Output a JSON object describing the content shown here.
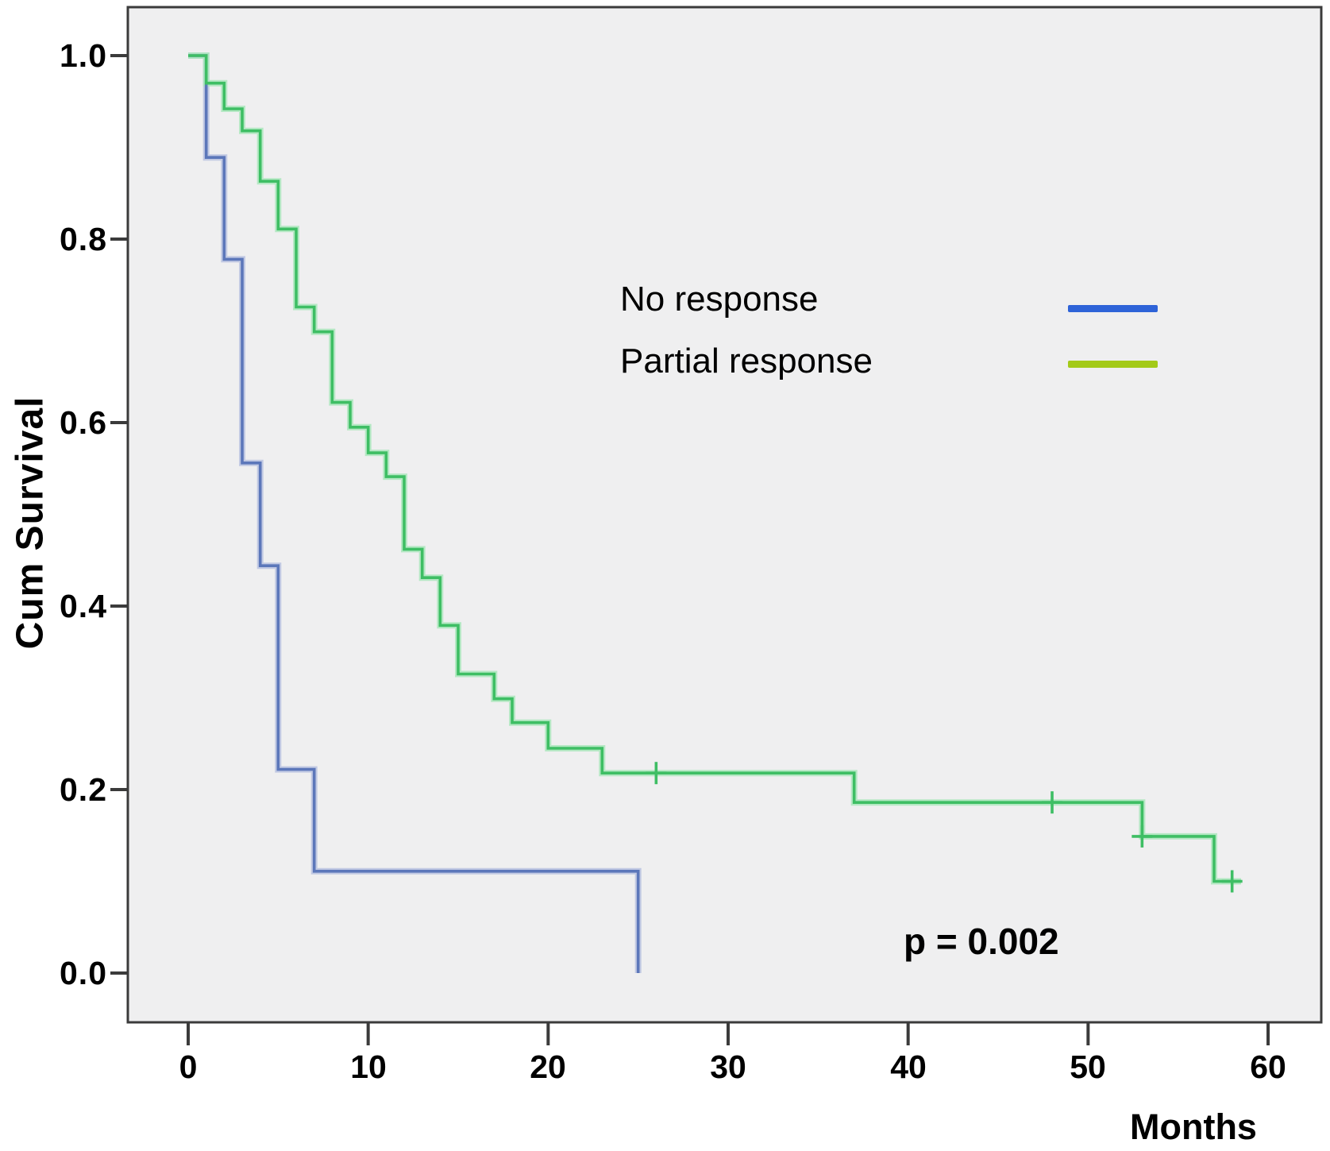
{
  "figure": {
    "ylabel": "Cum Survival",
    "xlabel": "Months",
    "pvalue_label": "p = 0.002"
  },
  "legend": {
    "items": [
      {
        "label": "No response",
        "color": "#2e63d8"
      },
      {
        "label": "Partial response",
        "color": "#a3ca18"
      }
    ]
  },
  "chart_data": {
    "type": "line",
    "subtype": "kaplan_meier_step_curve",
    "title": "",
    "xlabel": "Months",
    "ylabel": "Cum Survival",
    "xlim": [
      0,
      60
    ],
    "ylim": [
      0.0,
      1.0
    ],
    "x_ticks": [
      "0",
      "10",
      "20",
      "30",
      "40",
      "50",
      "60"
    ],
    "y_ticks": [
      "1.0",
      "0.8",
      "0.6",
      "0.4",
      "0.2",
      "0.0"
    ],
    "x_tick_values": [
      0,
      10,
      20,
      30,
      40,
      50,
      60
    ],
    "y_tick_values": [
      1.0,
      0.8,
      0.6,
      0.4,
      0.2,
      0.0
    ],
    "grid": false,
    "legend_position": "upper-right-inside",
    "annotation": "p = 0.002",
    "series": [
      {
        "name": "No response",
        "legend_color": "#2e63d8",
        "line_color": "#5c77ba",
        "halo_color": "#b9c2e0",
        "steps": [
          [
            0,
            1.0
          ],
          [
            1,
            0.889
          ],
          [
            2,
            0.778
          ],
          [
            3,
            0.556
          ],
          [
            4,
            0.444
          ],
          [
            5,
            0.222
          ],
          [
            7,
            0.111
          ],
          [
            25,
            0.0
          ]
        ],
        "end_time": 25,
        "censor_marks": []
      },
      {
        "name": "Partial response",
        "legend_color": "#a3ca18",
        "line_color": "#3ebe64",
        "halo_color": "#aae6bc",
        "steps": [
          [
            0,
            1.0
          ],
          [
            1,
            0.97
          ],
          [
            2,
            0.942
          ],
          [
            3,
            0.918
          ],
          [
            4,
            0.863
          ],
          [
            5,
            0.811
          ],
          [
            6,
            0.726
          ],
          [
            7,
            0.699
          ],
          [
            8,
            0.622
          ],
          [
            9,
            0.595
          ],
          [
            10,
            0.567
          ],
          [
            11,
            0.541
          ],
          [
            12,
            0.462
          ],
          [
            13,
            0.431
          ],
          [
            14,
            0.379
          ],
          [
            15,
            0.326
          ],
          [
            17,
            0.299
          ],
          [
            18,
            0.273
          ],
          [
            20,
            0.245
          ],
          [
            23,
            0.218
          ],
          [
            37,
            0.186
          ],
          [
            53,
            0.149
          ],
          [
            57,
            0.1
          ]
        ],
        "end_time": 58.5,
        "censor_marks": [
          [
            26,
            0.218
          ],
          [
            48,
            0.186
          ],
          [
            53,
            0.149
          ],
          [
            58,
            0.1
          ]
        ]
      }
    ]
  }
}
